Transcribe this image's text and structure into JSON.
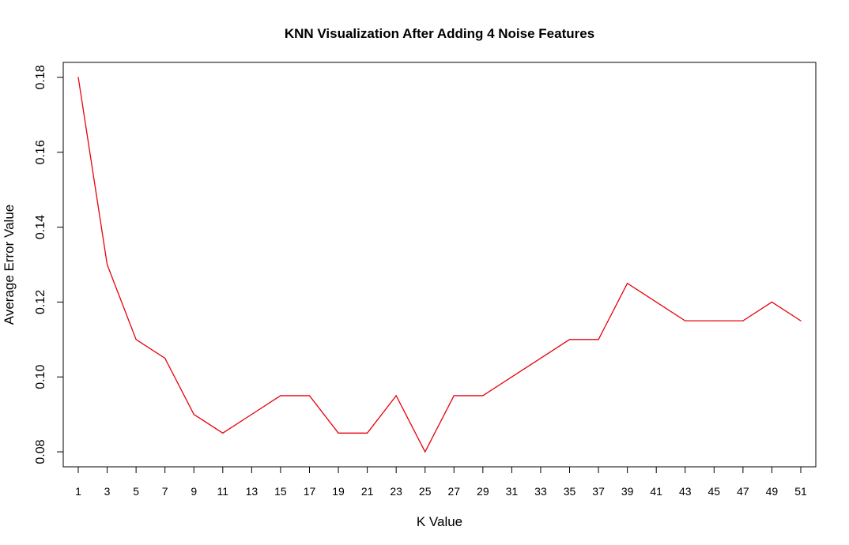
{
  "chart_data": {
    "type": "line",
    "title": "KNN Visualization After Adding 4 Noise Features",
    "xlabel": "K Value",
    "ylabel": "Average Error Value",
    "x": [
      1,
      3,
      5,
      7,
      9,
      11,
      13,
      15,
      17,
      19,
      21,
      23,
      25,
      27,
      29,
      31,
      33,
      35,
      37,
      39,
      41,
      43,
      45,
      47,
      49,
      51
    ],
    "series": [
      {
        "color": "#e8000b",
        "values": [
          0.18,
          0.13,
          0.11,
          0.105,
          0.09,
          0.085,
          0.09,
          0.095,
          0.095,
          0.085,
          0.085,
          0.095,
          0.08,
          0.095,
          0.095,
          0.1,
          0.105,
          0.11,
          0.11,
          0.125,
          0.12,
          0.115,
          0.115,
          0.115,
          0.12,
          0.115
        ]
      }
    ],
    "xticks": [
      "1",
      "3",
      "5",
      "7",
      "9",
      "11",
      "13",
      "15",
      "17",
      "19",
      "21",
      "23",
      "25",
      "27",
      "29",
      "31",
      "33",
      "35",
      "37",
      "39",
      "41",
      "43",
      "45",
      "47",
      "49",
      "51"
    ],
    "yticks": [
      0.08,
      0.1,
      0.12,
      0.14,
      0.16,
      0.18
    ],
    "ytick_labels": [
      "0.08",
      "0.10",
      "0.12",
      "0.14",
      "0.16",
      "0.18"
    ],
    "xlim": [
      -0.04,
      52.04
    ],
    "ylim": [
      0.076,
      0.184
    ],
    "grid": false,
    "legend": "none"
  }
}
